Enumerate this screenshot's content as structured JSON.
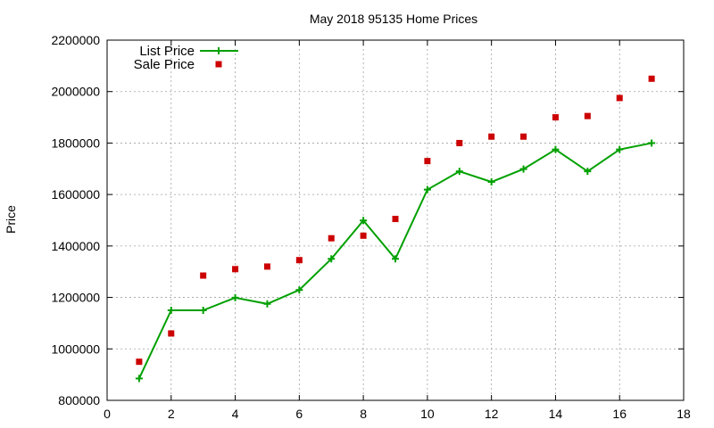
{
  "chart_data": {
    "type": "scatter",
    "title": "May 2018 95135 Home Prices",
    "xlabel": "",
    "ylabel": "Price",
    "xlim": [
      0,
      18
    ],
    "ylim": [
      800000,
      2200000
    ],
    "xticks": [
      0,
      2,
      4,
      6,
      8,
      10,
      12,
      14,
      16,
      18
    ],
    "yticks": [
      800000,
      1000000,
      1200000,
      1400000,
      1600000,
      1800000,
      2000000,
      2200000
    ],
    "grid": true,
    "legend_position": "top-left",
    "x": [
      1,
      2,
      3,
      4,
      5,
      6,
      7,
      8,
      9,
      10,
      11,
      12,
      13,
      14,
      15,
      16,
      17
    ],
    "series": [
      {
        "name": "List Price",
        "style": "line-points",
        "color": "#00a000",
        "values": [
          885000,
          1150000,
          1150000,
          1199000,
          1175000,
          1229000,
          1350000,
          1499000,
          1350000,
          1619000,
          1690000,
          1649000,
          1699000,
          1775000,
          1690000,
          1775000,
          1800000
        ]
      },
      {
        "name": "Sale Price",
        "style": "points",
        "color": "#cc0000",
        "values": [
          950000,
          1060000,
          1285000,
          1310000,
          1320000,
          1345000,
          1430000,
          1440000,
          1505000,
          1730000,
          1800000,
          1825000,
          1825000,
          1900000,
          1905000,
          1975000,
          2050000
        ]
      }
    ]
  }
}
